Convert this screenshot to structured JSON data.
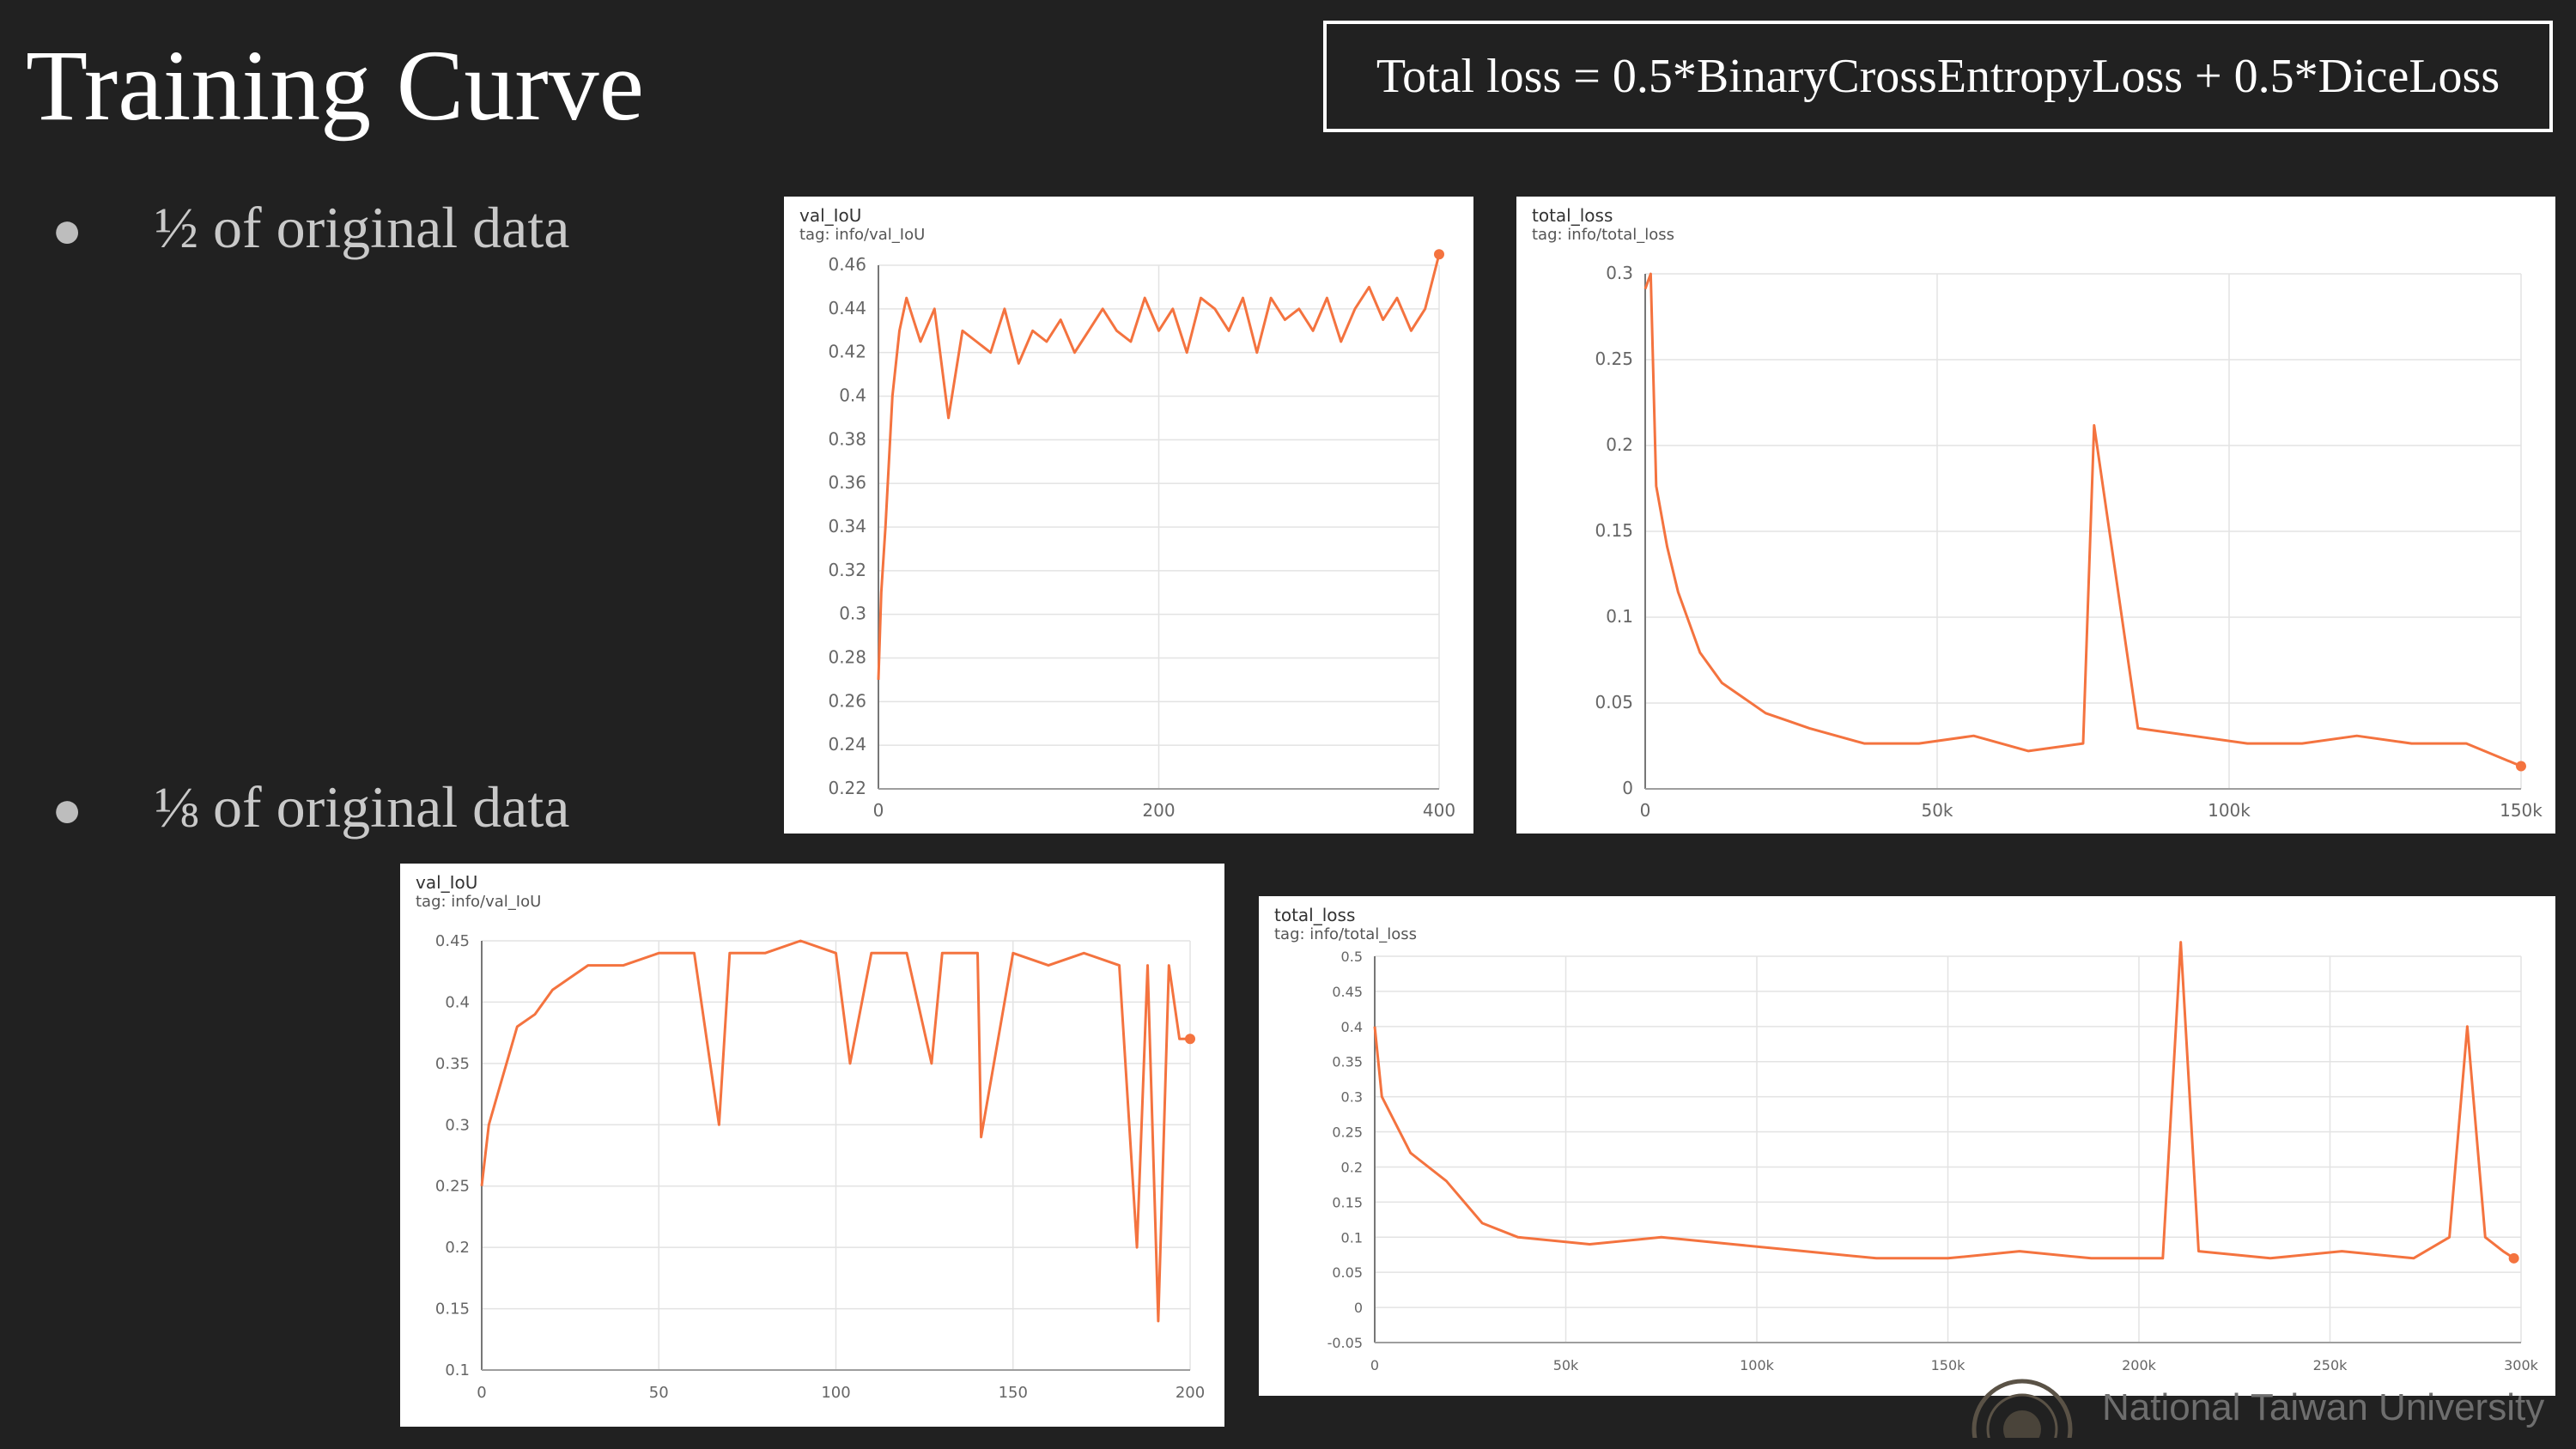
{
  "slide": {
    "title": "Training Curve",
    "formula": "Total loss = 0.5*BinaryCrossEntropyLoss + 0.5*DiceLoss",
    "bullets": [
      "½ of original data",
      "⅛ of original data"
    ],
    "footer": "National Taiwan University"
  },
  "charts": [
    {
      "title": "val_IoU",
      "tag": "tag: info/val_IoU",
      "yticks": [
        "0.46",
        "0.44",
        "0.42",
        "0.4",
        "0.38",
        "0.36",
        "0.34",
        "0.32",
        "0.3",
        "0.28",
        "0.26",
        "0.24",
        "0.22"
      ],
      "xticks": [
        "0",
        "200",
        "400"
      ]
    },
    {
      "title": "total_loss",
      "tag": "tag: info/total_loss",
      "yticks": [
        "0.3",
        "0.25",
        "0.2",
        "0.15",
        "0.1",
        "0.05",
        "0"
      ],
      "xticks": [
        "0",
        "50k",
        "100k",
        "150k"
      ]
    },
    {
      "title": "val_IoU",
      "tag": "tag: info/val_IoU",
      "yticks": [
        "0.45",
        "0.4",
        "0.35",
        "0.3",
        "0.25",
        "0.2",
        "0.15",
        "0.1"
      ],
      "xticks": [
        "0",
        "50",
        "100",
        "150",
        "200"
      ]
    },
    {
      "title": "total_loss",
      "tag": "tag: info/total_loss",
      "yticks": [
        "0.5",
        "0.45",
        "0.4",
        "0.35",
        "0.3",
        "0.25",
        "0.2",
        "0.15",
        "0.1",
        "0.05",
        "0",
        "-0.05"
      ],
      "xticks": [
        "0",
        "50k",
        "100k",
        "150k",
        "200k",
        "250k",
        "300k"
      ]
    }
  ],
  "chart_data": [
    {
      "type": "line",
      "title": "val_IoU",
      "ylim": [
        0.22,
        0.46
      ],
      "xlim": [
        0,
        400
      ],
      "grid": true,
      "color": "#f4733f",
      "x": [
        0,
        2,
        5,
        10,
        15,
        20,
        30,
        40,
        50,
        60,
        70,
        80,
        90,
        100,
        110,
        120,
        130,
        140,
        150,
        160,
        170,
        180,
        190,
        200,
        210,
        220,
        230,
        240,
        250,
        260,
        270,
        280,
        290,
        300,
        310,
        320,
        330,
        340,
        350,
        360,
        370,
        380,
        390,
        400
      ],
      "y": [
        0.27,
        0.31,
        0.34,
        0.4,
        0.43,
        0.445,
        0.425,
        0.44,
        0.39,
        0.43,
        0.425,
        0.42,
        0.44,
        0.415,
        0.43,
        0.425,
        0.435,
        0.42,
        0.43,
        0.44,
        0.43,
        0.425,
        0.445,
        0.43,
        0.44,
        0.42,
        0.445,
        0.44,
        0.43,
        0.445,
        0.42,
        0.445,
        0.435,
        0.44,
        0.43,
        0.445,
        0.425,
        0.44,
        0.45,
        0.435,
        0.445,
        0.43,
        0.44,
        0.465
      ]
    },
    {
      "type": "line",
      "title": "total_loss",
      "ylim": [
        0,
        0.34
      ],
      "xlim": [
        0,
        160000
      ],
      "grid": true,
      "color": "#f4733f",
      "x": [
        0,
        1000,
        2000,
        4000,
        6000,
        8000,
        10000,
        14000,
        18000,
        22000,
        26000,
        30000,
        40000,
        50000,
        60000,
        70000,
        80000,
        82000,
        90000,
        100000,
        110000,
        120000,
        130000,
        140000,
        150000,
        160000
      ],
      "y": [
        0.33,
        0.34,
        0.2,
        0.16,
        0.13,
        0.11,
        0.09,
        0.07,
        0.06,
        0.05,
        0.045,
        0.04,
        0.03,
        0.03,
        0.035,
        0.025,
        0.03,
        0.24,
        0.04,
        0.035,
        0.03,
        0.03,
        0.035,
        0.03,
        0.03,
        0.015
      ]
    },
    {
      "type": "line",
      "title": "val_IoU",
      "ylim": [
        0.1,
        0.45
      ],
      "xlim": [
        0,
        200
      ],
      "grid": true,
      "color": "#f4733f",
      "x": [
        0,
        2,
        5,
        10,
        15,
        20,
        25,
        30,
        40,
        50,
        60,
        67,
        70,
        80,
        90,
        100,
        104,
        110,
        120,
        127,
        130,
        140,
        141,
        150,
        160,
        170,
        180,
        185,
        188,
        191,
        194,
        197,
        200
      ],
      "y": [
        0.25,
        0.3,
        0.33,
        0.38,
        0.39,
        0.41,
        0.42,
        0.43,
        0.43,
        0.44,
        0.44,
        0.3,
        0.44,
        0.44,
        0.45,
        0.44,
        0.35,
        0.44,
        0.44,
        0.35,
        0.44,
        0.44,
        0.29,
        0.44,
        0.43,
        0.44,
        0.43,
        0.2,
        0.43,
        0.14,
        0.43,
        0.37,
        0.37
      ]
    },
    {
      "type": "line",
      "title": "total_loss",
      "ylim": [
        -0.05,
        0.5
      ],
      "xlim": [
        0,
        320000
      ],
      "grid": true,
      "color": "#f4733f",
      "x": [
        0,
        2000,
        10000,
        20000,
        30000,
        40000,
        60000,
        80000,
        100000,
        120000,
        140000,
        160000,
        180000,
        200000,
        220000,
        225000,
        230000,
        250000,
        270000,
        290000,
        300000,
        305000,
        310000,
        315000,
        318000
      ],
      "y": [
        0.4,
        0.3,
        0.22,
        0.18,
        0.12,
        0.1,
        0.09,
        0.1,
        0.09,
        0.08,
        0.07,
        0.07,
        0.08,
        0.07,
        0.07,
        0.52,
        0.08,
        0.07,
        0.08,
        0.07,
        0.1,
        0.4,
        0.1,
        0.08,
        0.07
      ]
    }
  ]
}
